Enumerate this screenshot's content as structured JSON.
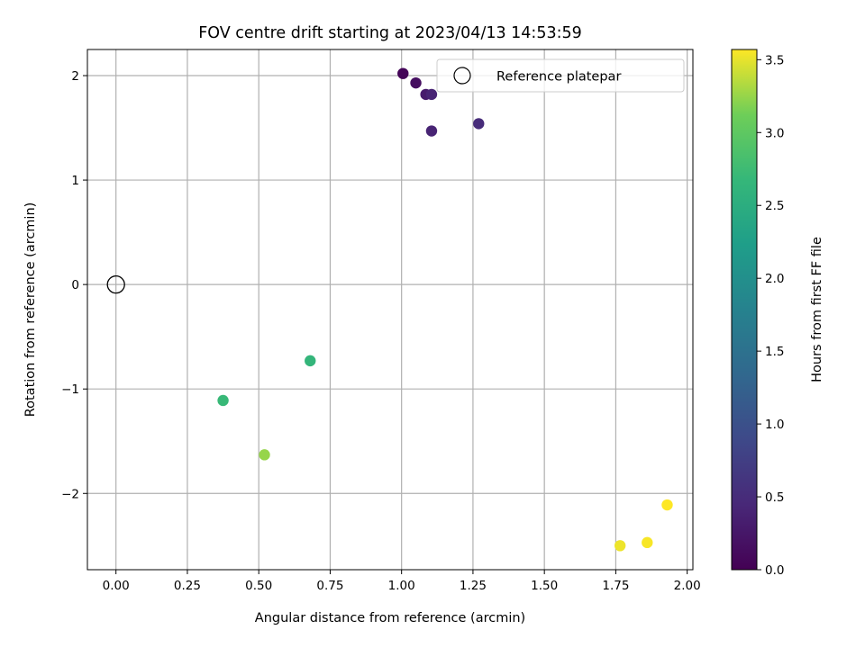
{
  "chart_data": {
    "type": "scatter",
    "title": "FOV centre drift starting at 2023/04/13 14:53:59",
    "xlabel": "Angular distance from reference (arcmin)",
    "ylabel": "Rotation from reference (arcmin)",
    "xlim": [
      -0.1,
      2.02
    ],
    "ylim": [
      -2.73,
      2.25
    ],
    "xticks": [
      0.0,
      0.25,
      0.5,
      0.75,
      1.0,
      1.25,
      1.5,
      1.75,
      2.0
    ],
    "xtick_labels": [
      "0.00",
      "0.25",
      "0.50",
      "0.75",
      "1.00",
      "1.25",
      "1.50",
      "1.75",
      "2.00"
    ],
    "yticks": [
      -2,
      -1,
      0,
      1,
      2
    ],
    "ytick_labels": [
      "−2",
      "−1",
      "0",
      "1",
      "2"
    ],
    "grid": true,
    "series": [
      {
        "name": "Reference platepar",
        "marker": "open-circle",
        "color": "#000000",
        "x": [
          0.0
        ],
        "y": [
          0.0
        ]
      },
      {
        "colormap": "viridis",
        "x": [
          1.005,
          1.05,
          1.085,
          1.105,
          1.105,
          1.27,
          0.68,
          0.375,
          0.52,
          1.765,
          1.86,
          1.93
        ],
        "y": [
          2.02,
          1.93,
          1.82,
          1.82,
          1.47,
          1.54,
          -0.73,
          -1.11,
          -1.63,
          -2.5,
          -2.47,
          -2.11
        ],
        "c": [
          0.05,
          0.15,
          0.3,
          0.4,
          0.4,
          0.5,
          2.65,
          2.7,
          3.25,
          3.52,
          3.55,
          3.58
        ]
      }
    ],
    "legend": {
      "placement": "top-right",
      "entries": [
        "Reference platepar"
      ]
    },
    "colorbar": {
      "label": "Hours from first FF file",
      "range": [
        0.0,
        3.57
      ],
      "ticks": [
        0.0,
        0.5,
        1.0,
        1.5,
        2.0,
        2.5,
        3.0,
        3.5
      ],
      "tick_labels": [
        "0.0",
        "0.5",
        "1.0",
        "1.5",
        "2.0",
        "2.5",
        "3.0",
        "3.5"
      ]
    }
  }
}
